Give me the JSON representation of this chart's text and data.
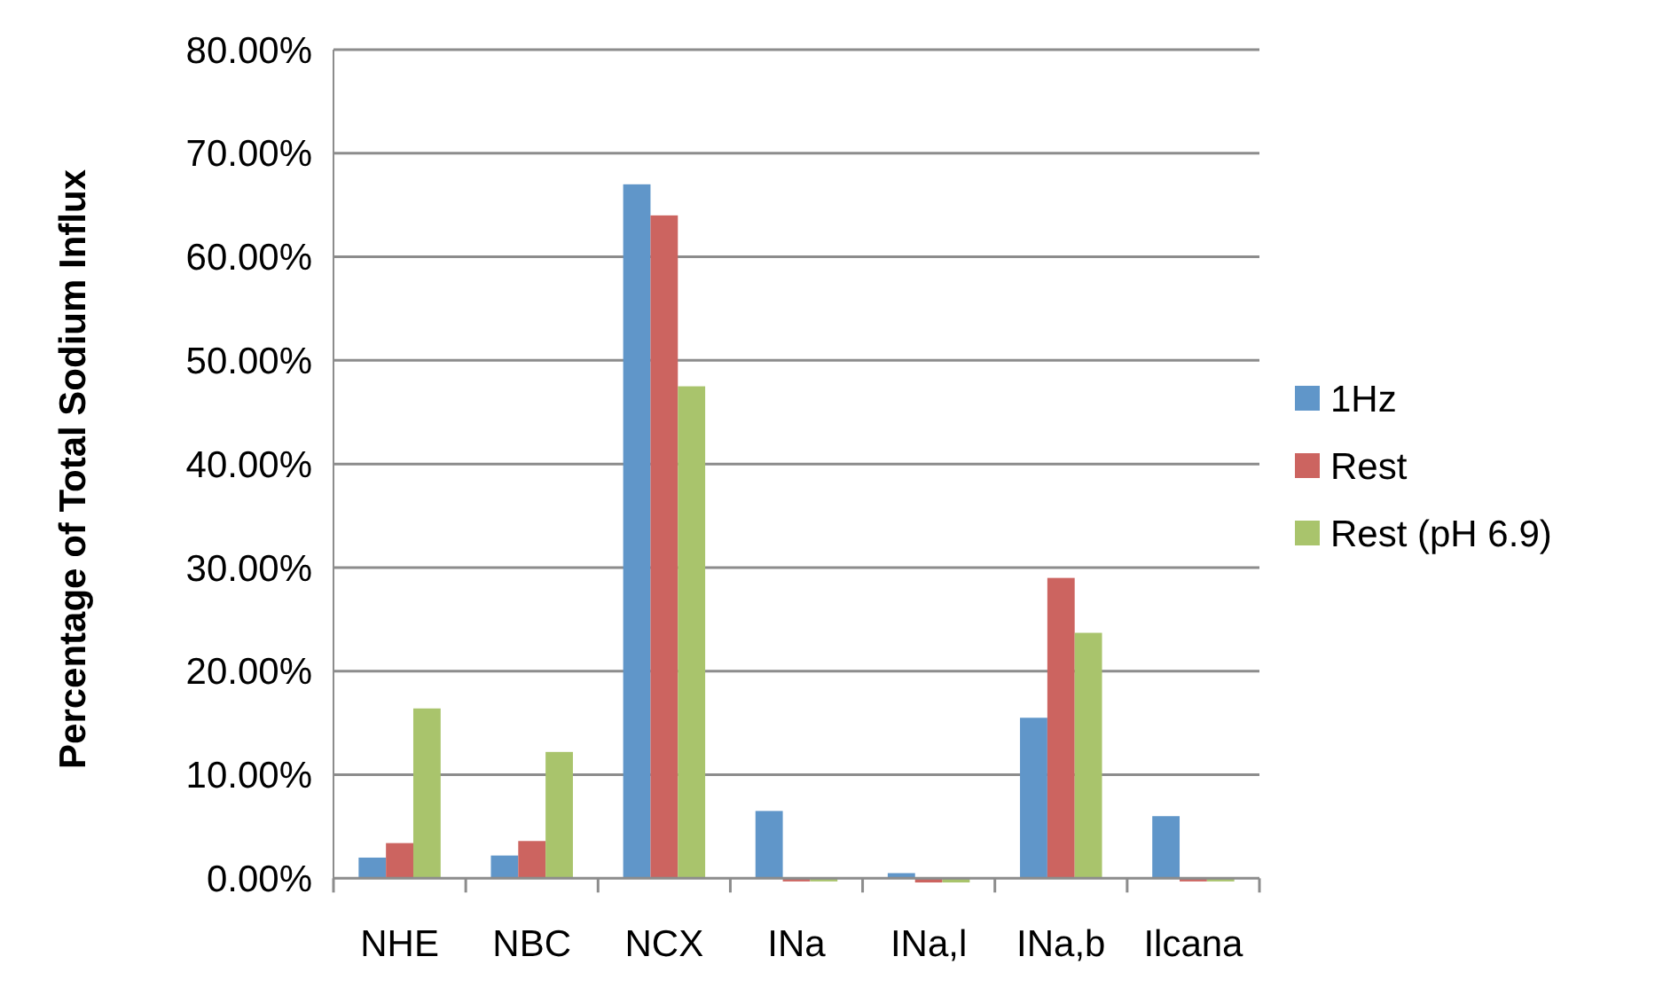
{
  "chart_data": {
    "type": "bar",
    "ylabel": "Percentage of Total Sodium Influx",
    "categories": [
      "NHE",
      "NBC",
      "NCX",
      "INa",
      "INa,l",
      "INa,b",
      "Ilcana"
    ],
    "series": [
      {
        "name": "1Hz",
        "color": "#6096c9",
        "values": [
          2.0,
          2.2,
          67,
          6.5,
          0.5,
          15.5,
          6.0
        ]
      },
      {
        "name": "Rest",
        "color": "#cc6460",
        "values": [
          3.4,
          3.6,
          64,
          -0.3,
          -0.4,
          29,
          -0.3
        ]
      },
      {
        "name": "Rest (pH 6.9)",
        "color": "#a9c46c",
        "values": [
          16.4,
          12.2,
          47.5,
          -0.3,
          -0.4,
          23.7,
          -0.3
        ]
      }
    ],
    "ylim": [
      -1,
      80
    ],
    "yticks": [
      {
        "value": 0,
        "label": "0.00%"
      },
      {
        "value": 10,
        "label": "10.00%"
      },
      {
        "value": 20,
        "label": "20.00%"
      },
      {
        "value": 30,
        "label": "30.00%"
      },
      {
        "value": 40,
        "label": "40.00%"
      },
      {
        "value": 50,
        "label": "50.00%"
      },
      {
        "value": 60,
        "label": "60.00%"
      },
      {
        "value": 70,
        "label": "70.00%"
      },
      {
        "value": 80,
        "label": "80.00%"
      }
    ],
    "grid": "y",
    "legend": "right"
  }
}
